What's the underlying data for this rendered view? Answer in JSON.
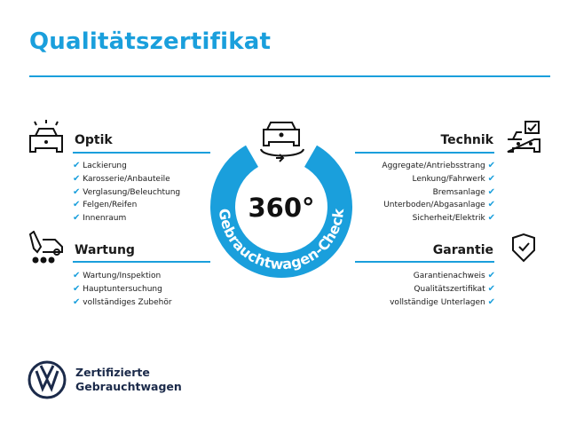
{
  "title": "Qualitätszertifikat",
  "center": {
    "degrees": "360°",
    "ring_text": "Gebrauchtwagen-Check",
    "ring_color": "#1a9fdc"
  },
  "sections": {
    "optik": {
      "title": "Optik",
      "items": [
        "Lackierung",
        "Karosserie/Anbauteile",
        "Verglasung/Beleuchtung",
        "Felgen/Reifen",
        "Innenraum"
      ]
    },
    "wartung": {
      "title": "Wartung",
      "items": [
        "Wartung/Inspektion",
        "Hauptuntersuchung",
        "vollständiges Zubehör"
      ]
    },
    "technik": {
      "title": "Technik",
      "items": [
        "Aggregate/Antriebsstrang",
        "Lenkung/Fahrwerk",
        "Bremsanlage",
        "Unterboden/Abgasanlage",
        "Sicherheit/Elektrik"
      ]
    },
    "garantie": {
      "title": "Garantie",
      "items": [
        "Garantienachweis",
        "Qualitätszertifikat",
        "vollständige Unterlagen"
      ]
    }
  },
  "check_mark": "✔",
  "brand": {
    "line1": "Zertifizierte",
    "line2": "Gebrauchtwagen",
    "logo": "VW"
  }
}
